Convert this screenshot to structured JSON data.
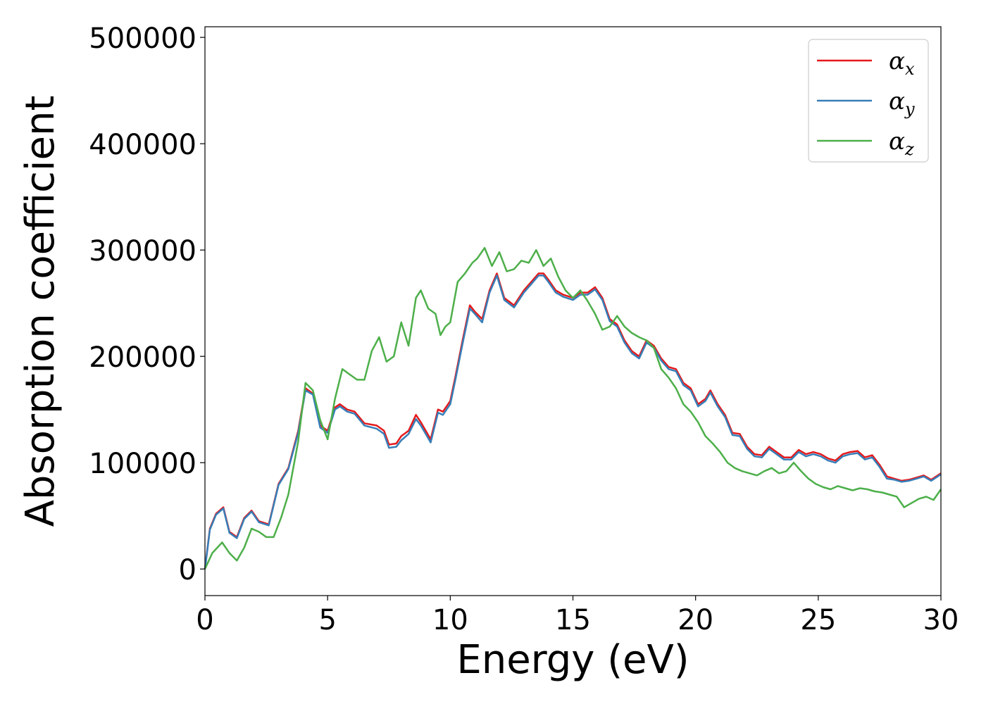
{
  "chart_data": {
    "type": "line",
    "title": "",
    "xlabel": "Energy (eV)",
    "ylabel": "Absorption coefficient",
    "xlim": [
      0,
      30
    ],
    "ylim": [
      -25000,
      510000
    ],
    "xticks": [
      0,
      5,
      10,
      15,
      20,
      25,
      30
    ],
    "yticks": [
      0,
      100000,
      200000,
      300000,
      400000,
      500000
    ],
    "grid": false,
    "legend_position": "top-right",
    "series": [
      {
        "name": "αx",
        "symbol": "α",
        "subscript": "x",
        "color": "#e41a1c",
        "x": [
          0,
          0.2,
          0.45,
          0.75,
          1.0,
          1.3,
          1.6,
          1.9,
          2.2,
          2.6,
          3.0,
          3.4,
          3.8,
          4.1,
          4.4,
          4.7,
          5.0,
          5.3,
          5.5,
          5.8,
          6.1,
          6.5,
          7.0,
          7.3,
          7.5,
          7.8,
          8.0,
          8.3,
          8.6,
          8.8,
          9.0,
          9.2,
          9.5,
          9.7,
          10.0,
          10.2,
          10.5,
          10.8,
          11.0,
          11.3,
          11.6,
          11.9,
          12.2,
          12.6,
          13.0,
          13.3,
          13.6,
          13.8,
          14.0,
          14.3,
          14.6,
          15.0,
          15.3,
          15.6,
          15.9,
          16.2,
          16.5,
          16.8,
          17.1,
          17.4,
          17.7,
          18.0,
          18.3,
          18.6,
          18.9,
          19.2,
          19.5,
          19.8,
          20.1,
          20.4,
          20.6,
          20.9,
          21.2,
          21.5,
          21.8,
          22.1,
          22.4,
          22.7,
          23.0,
          23.3,
          23.6,
          23.9,
          24.2,
          24.5,
          24.8,
          25.1,
          25.4,
          25.7,
          26.0,
          26.3,
          26.6,
          26.9,
          27.2,
          27.5,
          27.8,
          28.1,
          28.4,
          28.7,
          29.0,
          29.3,
          29.6,
          30.0
        ],
        "y": [
          0,
          38000,
          52000,
          58000,
          35000,
          30000,
          48000,
          55000,
          45000,
          42000,
          80000,
          95000,
          130000,
          170000,
          165000,
          135000,
          130000,
          152000,
          155000,
          150000,
          148000,
          137000,
          135000,
          130000,
          117000,
          118000,
          125000,
          130000,
          145000,
          138000,
          130000,
          122000,
          150000,
          148000,
          158000,
          180000,
          215000,
          248000,
          242000,
          235000,
          262000,
          278000,
          255000,
          248000,
          262000,
          270000,
          278000,
          278000,
          272000,
          262000,
          258000,
          255000,
          260000,
          260000,
          265000,
          255000,
          235000,
          230000,
          215000,
          205000,
          200000,
          215000,
          210000,
          198000,
          190000,
          188000,
          175000,
          170000,
          155000,
          160000,
          168000,
          155000,
          145000,
          128000,
          127000,
          115000,
          108000,
          107000,
          115000,
          110000,
          105000,
          105000,
          112000,
          108000,
          110000,
          108000,
          104000,
          102000,
          108000,
          110000,
          111000,
          105000,
          107000,
          98000,
          87000,
          85000,
          83000,
          84000,
          86000,
          88000,
          84000,
          90000
        ]
      },
      {
        "name": "αy",
        "symbol": "α",
        "subscript": "y",
        "color": "#377eb8",
        "x": [
          0,
          0.2,
          0.45,
          0.75,
          1.0,
          1.3,
          1.6,
          1.9,
          2.2,
          2.6,
          3.0,
          3.4,
          3.8,
          4.1,
          4.4,
          4.7,
          5.0,
          5.3,
          5.5,
          5.8,
          6.1,
          6.5,
          7.0,
          7.3,
          7.5,
          7.8,
          8.0,
          8.3,
          8.6,
          8.8,
          9.0,
          9.2,
          9.5,
          9.7,
          10.0,
          10.2,
          10.5,
          10.8,
          11.0,
          11.3,
          11.6,
          11.9,
          12.2,
          12.6,
          13.0,
          13.3,
          13.6,
          13.8,
          14.0,
          14.3,
          14.6,
          15.0,
          15.3,
          15.6,
          15.9,
          16.2,
          16.5,
          16.8,
          17.1,
          17.4,
          17.7,
          18.0,
          18.3,
          18.6,
          18.9,
          19.2,
          19.5,
          19.8,
          20.1,
          20.4,
          20.6,
          20.9,
          21.2,
          21.5,
          21.8,
          22.1,
          22.4,
          22.7,
          23.0,
          23.3,
          23.6,
          23.9,
          24.2,
          24.5,
          24.8,
          25.1,
          25.4,
          25.7,
          26.0,
          26.3,
          26.6,
          26.9,
          27.2,
          27.5,
          27.8,
          28.1,
          28.4,
          28.7,
          29.0,
          29.3,
          29.6,
          30.0
        ],
        "y": [
          0,
          37000,
          51000,
          57000,
          34000,
          29000,
          47000,
          54000,
          44000,
          41000,
          79000,
          94000,
          128000,
          168000,
          164000,
          133000,
          128000,
          150000,
          153000,
          148000,
          146000,
          135000,
          132000,
          127000,
          114000,
          115000,
          121000,
          127000,
          141000,
          135000,
          127000,
          119000,
          147000,
          145000,
          155000,
          177000,
          212000,
          245000,
          240000,
          232000,
          260000,
          276000,
          253000,
          246000,
          260000,
          268000,
          276000,
          276000,
          270000,
          260000,
          256000,
          253000,
          258000,
          258000,
          263000,
          253000,
          233000,
          228000,
          213000,
          203000,
          198000,
          213000,
          208000,
          196000,
          188000,
          186000,
          173000,
          168000,
          153000,
          158000,
          166000,
          153000,
          143000,
          126000,
          125000,
          113000,
          106000,
          105000,
          113000,
          108000,
          103000,
          103000,
          110000,
          106000,
          108000,
          106000,
          102000,
          100000,
          106000,
          108000,
          109000,
          103000,
          105000,
          96000,
          85000,
          84000,
          82000,
          83000,
          85000,
          87000,
          83000,
          89000
        ]
      },
      {
        "name": "αz",
        "symbol": "α",
        "subscript": "z",
        "color": "#4daf4a",
        "x": [
          0,
          0.3,
          0.7,
          1.0,
          1.3,
          1.6,
          1.9,
          2.2,
          2.5,
          2.8,
          3.1,
          3.4,
          3.8,
          4.1,
          4.4,
          4.7,
          5.0,
          5.3,
          5.6,
          5.9,
          6.2,
          6.5,
          6.8,
          7.1,
          7.4,
          7.7,
          8.0,
          8.3,
          8.6,
          8.8,
          9.1,
          9.4,
          9.6,
          9.8,
          10.0,
          10.3,
          10.6,
          10.9,
          11.1,
          11.4,
          11.7,
          12.0,
          12.3,
          12.6,
          12.9,
          13.2,
          13.5,
          13.8,
          14.1,
          14.4,
          14.7,
          15.0,
          15.3,
          15.6,
          15.9,
          16.2,
          16.5,
          16.8,
          17.1,
          17.4,
          17.7,
          18.0,
          18.3,
          18.6,
          18.9,
          19.2,
          19.5,
          19.8,
          20.1,
          20.4,
          20.7,
          21.0,
          21.3,
          21.6,
          21.9,
          22.2,
          22.5,
          22.8,
          23.1,
          23.4,
          23.7,
          24.0,
          24.3,
          24.6,
          24.9,
          25.2,
          25.5,
          25.8,
          26.1,
          26.4,
          26.7,
          27.0,
          27.3,
          27.6,
          27.9,
          28.2,
          28.5,
          28.8,
          29.1,
          29.4,
          29.7,
          30.0
        ],
        "y": [
          0,
          15000,
          25000,
          15000,
          8000,
          20000,
          38000,
          35000,
          30000,
          30000,
          48000,
          70000,
          120000,
          175000,
          168000,
          140000,
          122000,
          160000,
          188000,
          183000,
          178000,
          178000,
          205000,
          218000,
          195000,
          200000,
          232000,
          210000,
          255000,
          262000,
          245000,
          240000,
          220000,
          228000,
          232000,
          270000,
          278000,
          288000,
          292000,
          302000,
          285000,
          298000,
          280000,
          282000,
          290000,
          288000,
          300000,
          285000,
          292000,
          275000,
          262000,
          255000,
          262000,
          252000,
          240000,
          225000,
          228000,
          238000,
          228000,
          222000,
          218000,
          215000,
          208000,
          188000,
          180000,
          170000,
          155000,
          148000,
          138000,
          125000,
          118000,
          110000,
          100000,
          95000,
          92000,
          90000,
          88000,
          92000,
          95000,
          90000,
          92000,
          100000,
          92000,
          85000,
          80000,
          77000,
          75000,
          78000,
          76000,
          74000,
          76000,
          75000,
          73000,
          72000,
          70000,
          68000,
          58000,
          62000,
          66000,
          68000,
          65000,
          75000
        ]
      }
    ]
  }
}
